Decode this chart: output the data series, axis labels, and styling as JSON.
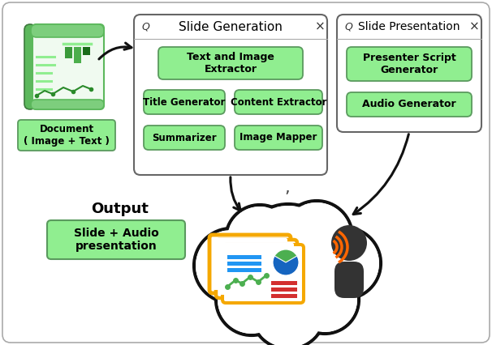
{
  "bg_color": "#ffffff",
  "slide_gen_title": "Slide Generation",
  "slide_pres_title": "Slide Presentation",
  "doc_label": "Document\n( Image + Text )",
  "output_label": "Output",
  "slide_audio_label": "Slide + Audio\npresentation",
  "boxes_slide_gen": [
    "Text and Image\nExtractor",
    "Title Generator",
    "Content Extractor",
    "Summarizer",
    "Image Mapper"
  ],
  "boxes_slide_pres": [
    "Presenter Script\nGenerator",
    "Audio Generator"
  ],
  "green_fill": "#90EE90",
  "green_edge": "#5a9a5e",
  "window_edge": "#666666",
  "arrow_color": "#111111",
  "cloud_edge": "#111111",
  "slide_gold": "#F5A800",
  "slide_blue": "#4FC3F7",
  "speaker_color": "#333333",
  "sound_color": "#FF6600"
}
